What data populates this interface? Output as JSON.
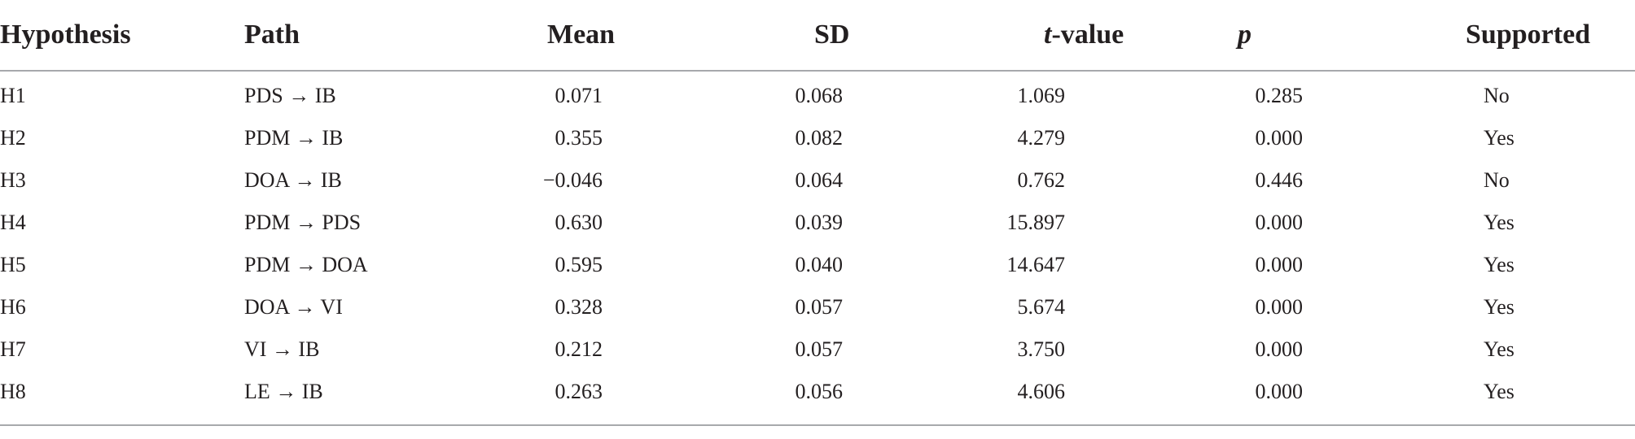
{
  "table": {
    "headers": {
      "hypothesis": "Hypothesis",
      "path": "Path",
      "mean": "Mean",
      "sd": "SD",
      "t_value_italic": "t",
      "t_value_rest": "-value",
      "p": "p",
      "supported": "Supported"
    },
    "rows": [
      {
        "hypothesis": "H1",
        "path": "PDS → IB",
        "mean": "0.071",
        "sd": "0.068",
        "t": "1.069",
        "p": "0.285",
        "supported": "No"
      },
      {
        "hypothesis": "H2",
        "path": "PDM → IB",
        "mean": "0.355",
        "sd": "0.082",
        "t": "4.279",
        "p": "0.000",
        "supported": "Yes"
      },
      {
        "hypothesis": "H3",
        "path": "DOA → IB",
        "mean": "−0.046",
        "sd": "0.064",
        "t": "0.762",
        "p": "0.446",
        "supported": "No"
      },
      {
        "hypothesis": "H4",
        "path": "PDM → PDS",
        "mean": "0.630",
        "sd": "0.039",
        "t": "15.897",
        "p": "0.000",
        "supported": "Yes"
      },
      {
        "hypothesis": "H5",
        "path": "PDM → DOA",
        "mean": "0.595",
        "sd": "0.040",
        "t": "14.647",
        "p": "0.000",
        "supported": "Yes"
      },
      {
        "hypothesis": "H6",
        "path": "DOA → VI",
        "mean": "0.328",
        "sd": "0.057",
        "t": "5.674",
        "p": "0.000",
        "supported": "Yes"
      },
      {
        "hypothesis": "H7",
        "path": "VI → IB",
        "mean": "0.212",
        "sd": "0.057",
        "t": "3.750",
        "p": "0.000",
        "supported": "Yes"
      },
      {
        "hypothesis": "H8",
        "path": "LE → IB",
        "mean": "0.263",
        "sd": "0.056",
        "t": "4.606",
        "p": "0.000",
        "supported": "Yes"
      }
    ]
  }
}
